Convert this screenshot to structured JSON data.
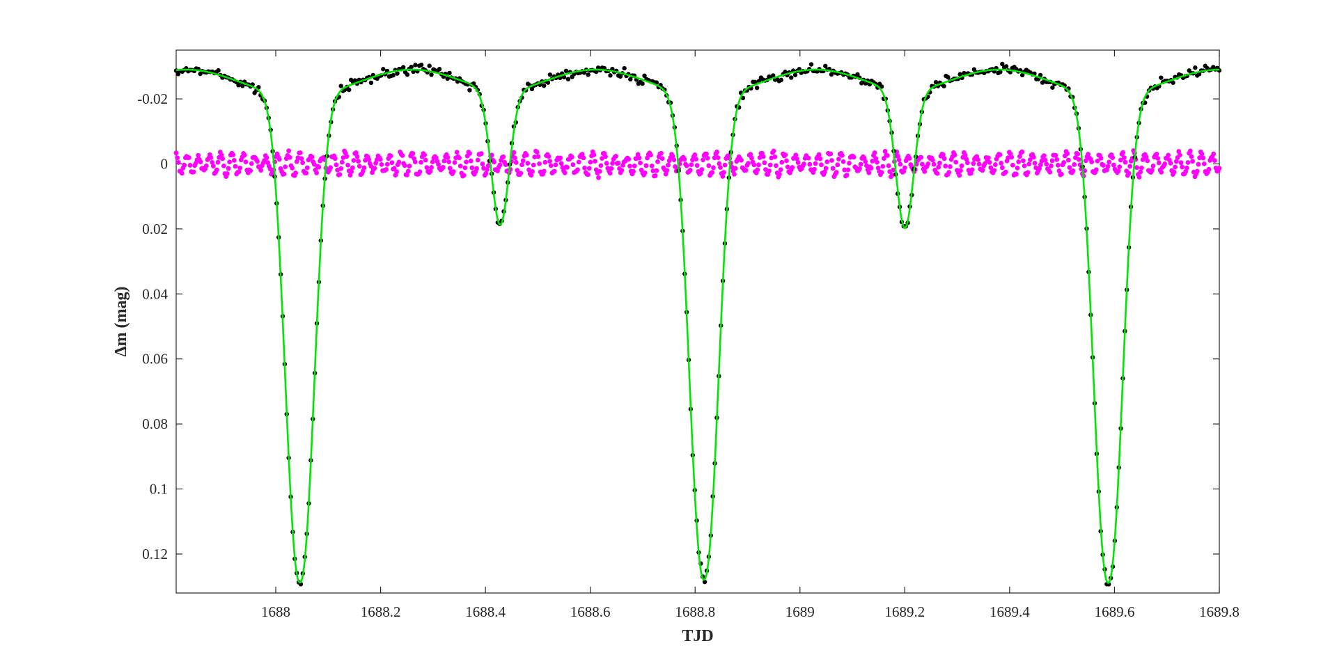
{
  "chart_data": {
    "type": "scatter",
    "title": "",
    "xlabel": "TJD",
    "ylabel": "Δm (mag)",
    "xlim": [
      1687.81,
      1689.8
    ],
    "ylim": [
      0.132,
      -0.035
    ],
    "y_axis_reversed": true,
    "grid": false,
    "legend": "none",
    "x_ticks": [
      1688,
      1688.2,
      1688.4,
      1688.6,
      1688.8,
      1689,
      1689.2,
      1689.4,
      1689.6,
      1689.8
    ],
    "x_tick_labels": [
      "1688",
      "1688.2",
      "1688.4",
      "1688.6",
      "1688.8",
      "1689",
      "1689.2",
      "1689.4",
      "1689.6",
      "1689.8"
    ],
    "y_ticks": [
      -0.02,
      0,
      0.02,
      0.04,
      0.06,
      0.08,
      0.1,
      0.12
    ],
    "y_tick_labels": [
      "-0.02",
      "0",
      "0.02",
      "0.04",
      "0.06",
      "0.08",
      "0.1",
      "0.12"
    ],
    "series": [
      {
        "kind": "observed",
        "marker": "dot",
        "color": "#000000",
        "x_start": 1687.81,
        "x_end": 1689.8,
        "points": 520,
        "model": {
          "baseline": -0.022,
          "primary_eclipses": [
            {
              "x": 1688.046,
              "depth": 0.129
            },
            {
              "x": 1688.817,
              "depth": 0.128
            },
            {
              "x": 1689.588,
              "depth": 0.129
            }
          ],
          "primary_width": 0.037,
          "secondary_eclipses": [
            {
              "x": 1688.428,
              "depth": 0.019
            },
            {
              "x": 1689.2,
              "depth": 0.02
            }
          ],
          "secondary_width": 0.024,
          "ellipsoidal_maxima": [
            1687.83,
            1688.26,
            1688.61,
            1689.03,
            1689.38,
            1689.8
          ],
          "ellipsoidal_max": -0.029,
          "scatter": 0.0016
        }
      },
      {
        "kind": "model",
        "marker": "line",
        "color": "#00e600"
      },
      {
        "kind": "residuals",
        "marker": "dot",
        "color": "#ff00ff",
        "level": 0.0,
        "amplitude": 0.0035,
        "oscillation_period": 0.0215,
        "points": 900
      }
    ]
  }
}
